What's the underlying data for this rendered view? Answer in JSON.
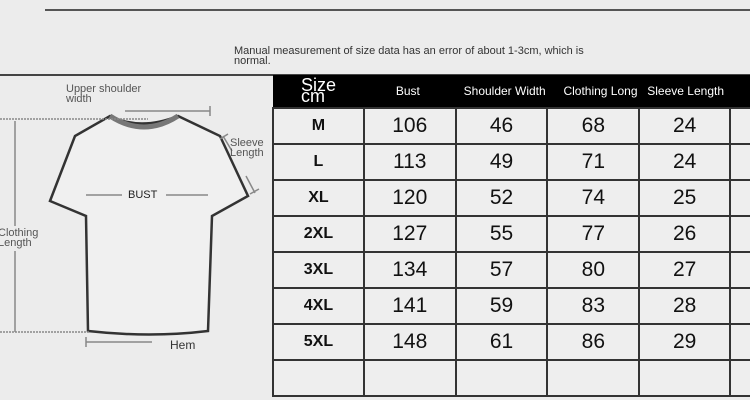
{
  "note": "Manual measurement of size data has an error of about 1-3cm, which is normal.",
  "diagram": {
    "upper_shoulder": "Upper shoulder width",
    "sleeve": "Sleeve Length",
    "bust": "BUST",
    "clothing_length": "Clothing Length",
    "hem": "Hem"
  },
  "table": {
    "headers": [
      "Size cm",
      "Bust",
      "Shoulder Width",
      "Clothing Long",
      "Sleeve Length"
    ],
    "rows": [
      [
        "M",
        "106",
        "46",
        "68",
        "24"
      ],
      [
        "L",
        "113",
        "49",
        "71",
        "24"
      ],
      [
        "XL",
        "120",
        "52",
        "74",
        "25"
      ],
      [
        "2XL",
        "127",
        "55",
        "77",
        "26"
      ],
      [
        "3XL",
        "134",
        "57",
        "80",
        "27"
      ],
      [
        "4XL",
        "141",
        "59",
        "83",
        "28"
      ],
      [
        "5XL",
        "148",
        "61",
        "86",
        "29"
      ]
    ]
  }
}
